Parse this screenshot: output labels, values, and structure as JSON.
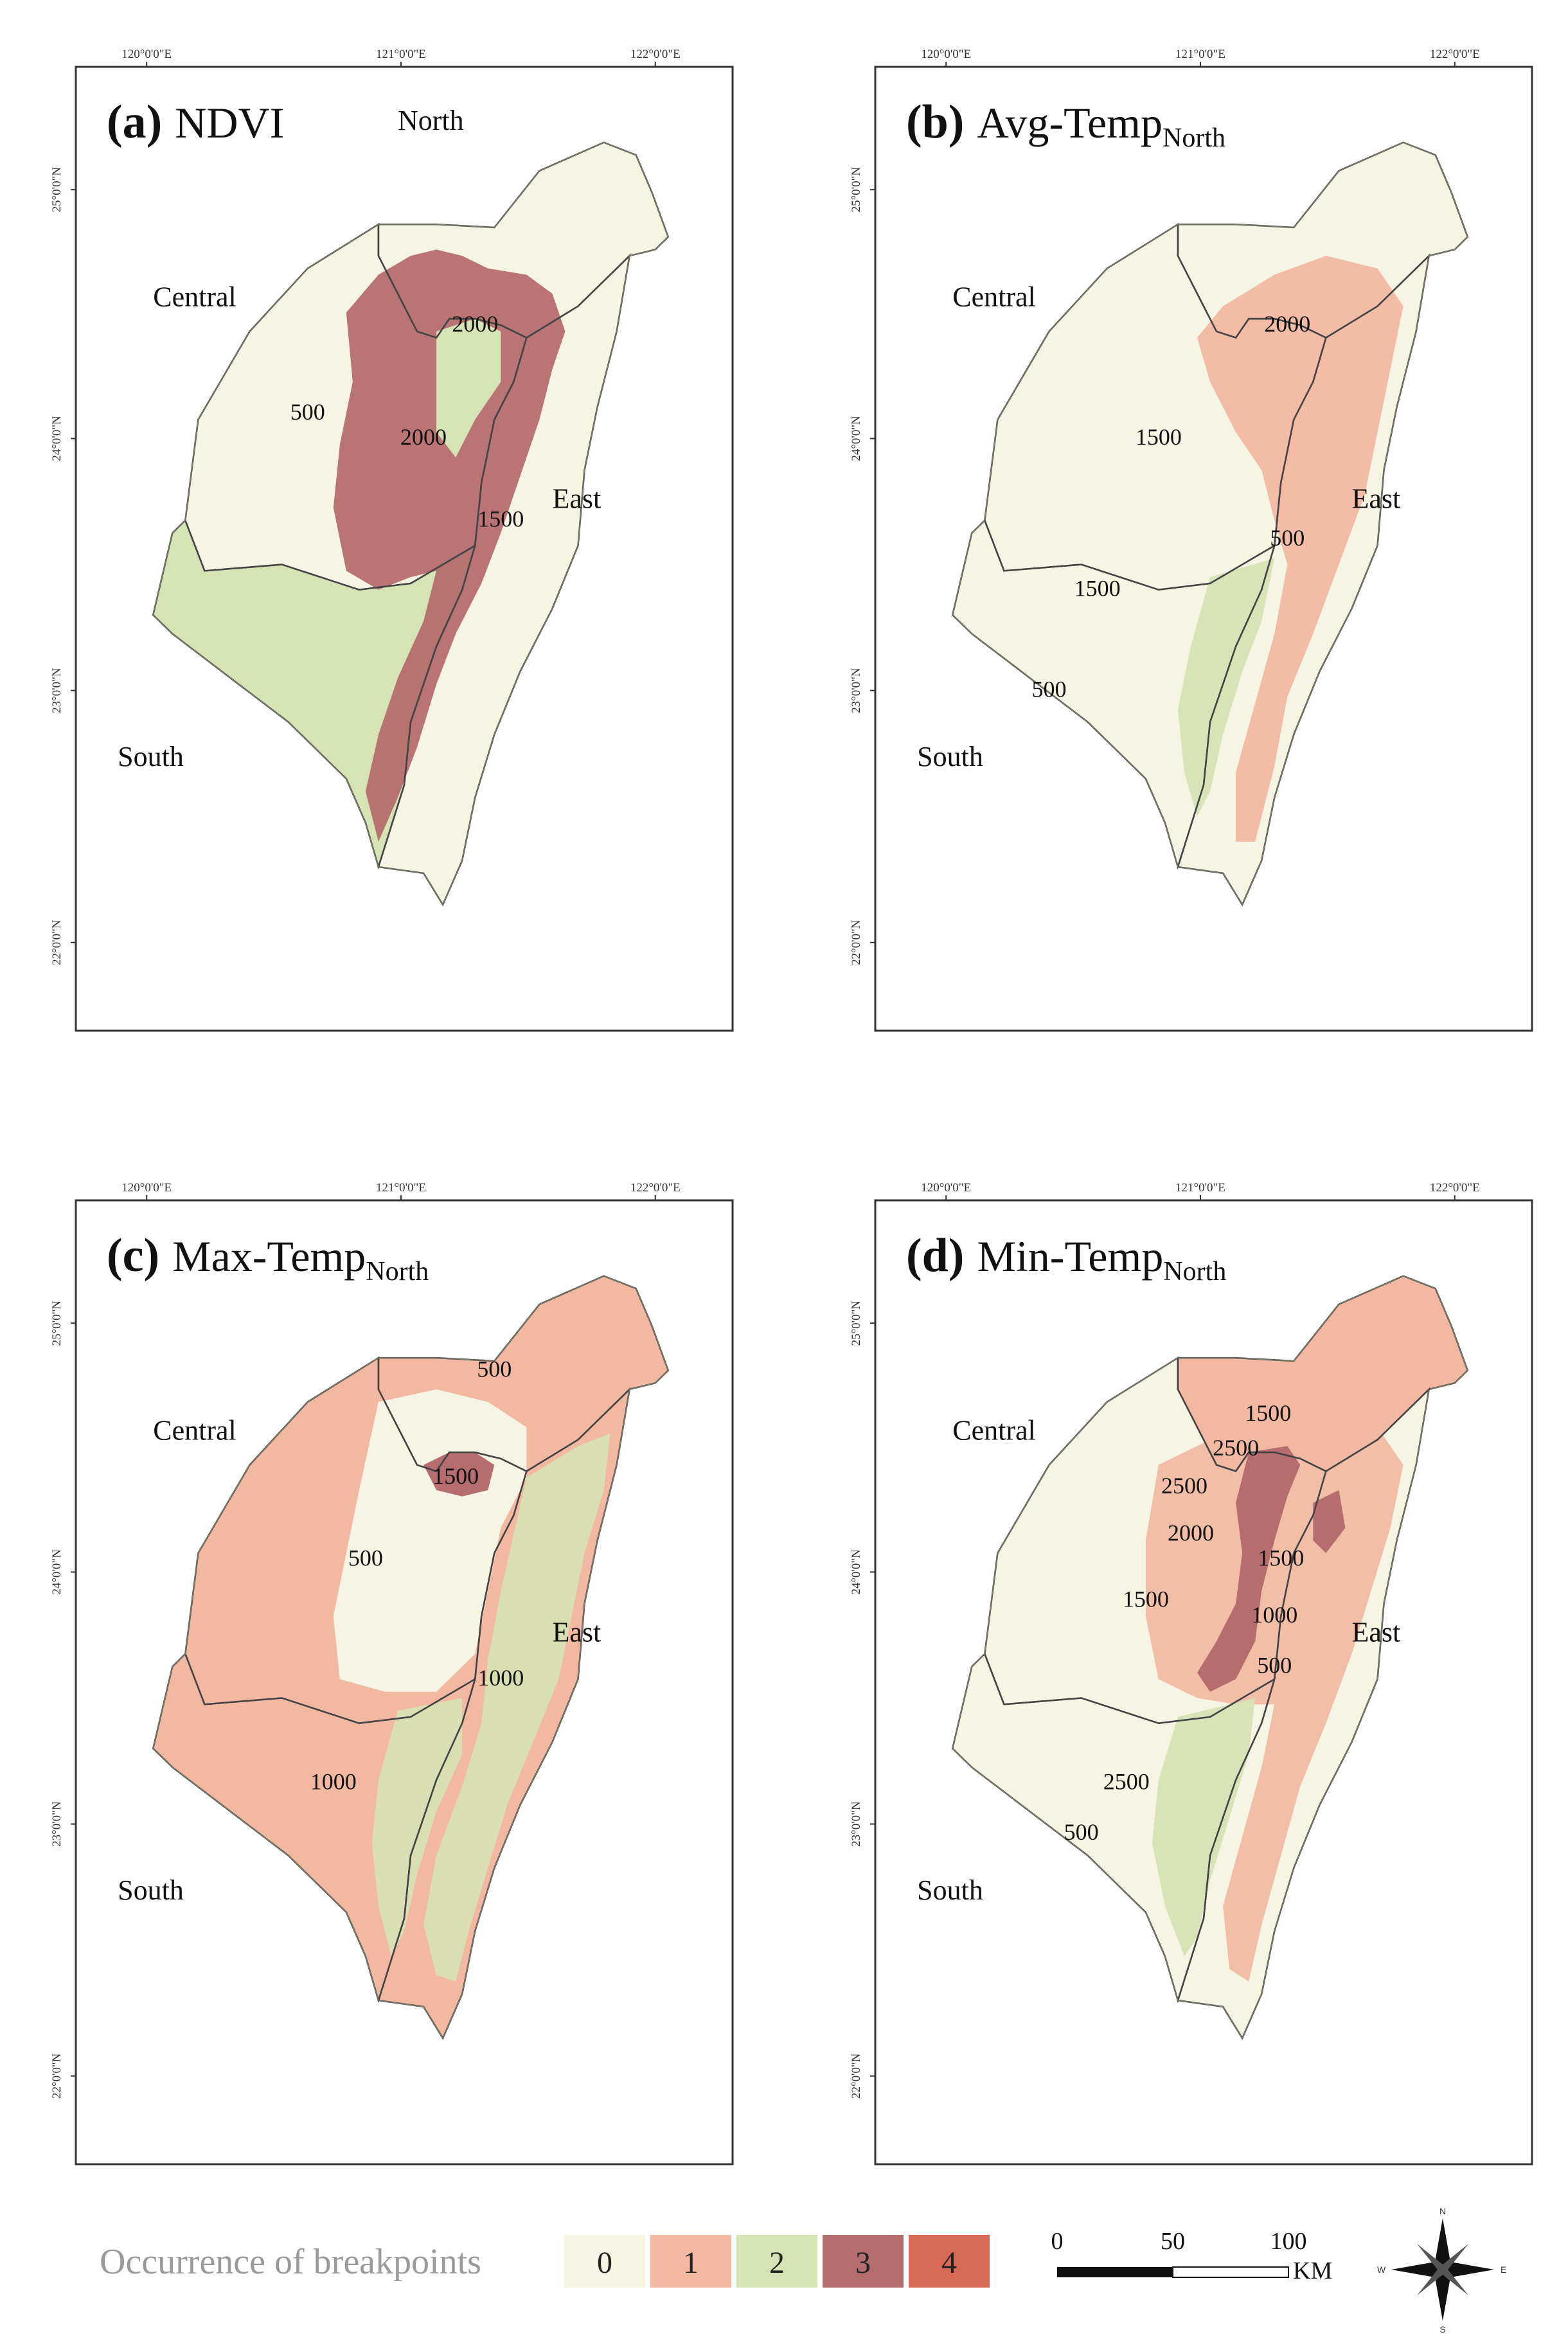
{
  "colors": {
    "c0": "#f6f4e2",
    "c1": "#f2b8a2",
    "c2": "#d6e3b4",
    "c3": "#b56d6d",
    "c4": "#d86a55",
    "frame": "#333333",
    "boundary": "#444444"
  },
  "graticule": {
    "lon_labels": [
      "120°0'0\"E",
      "121°0'0\"E",
      "122°0'0\"E"
    ],
    "lat_labels": [
      "25°0'0\"N",
      "24°0'0\"N",
      "23°0'0\"N",
      "22°0'0\"N"
    ]
  },
  "region_names": {
    "north": "North",
    "central": "Central",
    "east": "East",
    "south": "South"
  },
  "panels": [
    {
      "letter": "(a)",
      "name": "NDVI",
      "subscript": "",
      "regions": {
        "north": 0,
        "central": 0,
        "south": 2,
        "east": 0
      },
      "labels": [
        "2000",
        "500",
        "2000",
        "1500"
      ]
    },
    {
      "letter": "(b)",
      "name": "Avg-Temp",
      "subscript": "North",
      "regions": {
        "north": 0,
        "central": 0,
        "south": 0,
        "east": 0
      },
      "labels": [
        "2000",
        "1500",
        "500",
        "1500",
        "500"
      ]
    },
    {
      "letter": "(c)",
      "name": "Max-Temp",
      "subscript": "North",
      "regions": {
        "north": 1,
        "central": 1,
        "south": 1,
        "east": 1
      },
      "labels": [
        "500",
        "1500",
        "500",
        "1000",
        "1000"
      ]
    },
    {
      "letter": "(d)",
      "name": "Min-Temp",
      "subscript": "North",
      "regions": {
        "north": 1,
        "central": 0,
        "south": 0,
        "east": 0
      },
      "labels": [
        "1500",
        "2500",
        "2500",
        "2000",
        "1500",
        "1500",
        "1000",
        "500",
        "2500",
        "500"
      ]
    }
  ],
  "legend": {
    "title": "Occurrence of breakpoints",
    "classes": [
      "0",
      "1",
      "2",
      "3",
      "4"
    ]
  },
  "scale_bar": {
    "ticks": [
      "0",
      "50",
      "100"
    ],
    "unit": "KM"
  },
  "compass": {
    "n": "N",
    "s": "S",
    "e": "E",
    "w": "W"
  }
}
